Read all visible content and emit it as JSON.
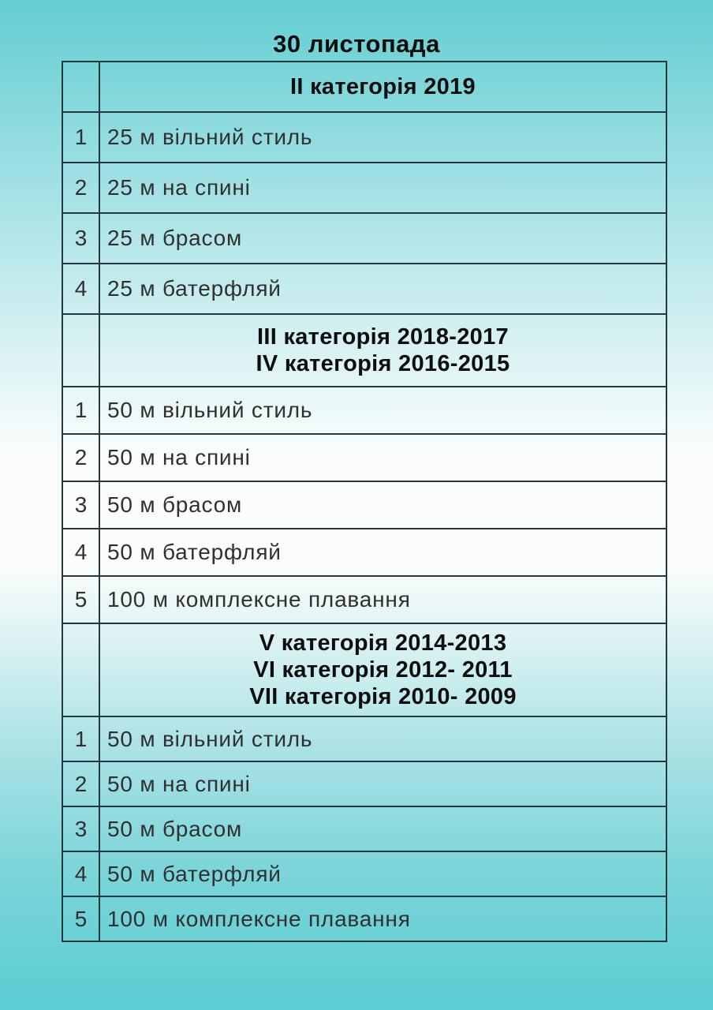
{
  "page": {
    "title": "30 листопада"
  },
  "colors": {
    "background_top": "#64ced3",
    "background_middle": "#fbfdfd",
    "background_bottom": "#5acdd3",
    "border": "#24393b",
    "text": "#303030",
    "heading_text": "#0d0d0d"
  },
  "table": {
    "sections": [
      {
        "header_lines": [
          "II категорія 2019"
        ],
        "rows": [
          {
            "num": "1",
            "event": "25 м вільний стиль"
          },
          {
            "num": "2",
            "event": "25 м на спині"
          },
          {
            "num": "3",
            "event": "25 м брасом"
          },
          {
            "num": "4",
            "event": "25 м батерфляй"
          }
        ]
      },
      {
        "header_lines": [
          "III категорія 2018-2017",
          "IV категорія 2016-2015"
        ],
        "rows": [
          {
            "num": "1",
            "event": "50 м вільний стиль"
          },
          {
            "num": "2",
            "event": "50 м на спині"
          },
          {
            "num": "3",
            "event": "50 м брасом"
          },
          {
            "num": "4",
            "event": "50 м батерфляй"
          },
          {
            "num": "5",
            "event": "100 м комплексне плавання"
          }
        ]
      },
      {
        "header_lines": [
          "V категорія 2014-2013",
          "VI категорія 2012- 2011",
          "VII категорія 2010- 2009"
        ],
        "rows": [
          {
            "num": "1",
            "event": "50 м вільний стиль"
          },
          {
            "num": "2",
            "event": "50 м на спині"
          },
          {
            "num": "3",
            "event": "50 м брасом"
          },
          {
            "num": "4",
            "event": "50 м батерфляй"
          },
          {
            "num": "5",
            "event": "100 м комплексне плавання"
          }
        ]
      }
    ]
  }
}
